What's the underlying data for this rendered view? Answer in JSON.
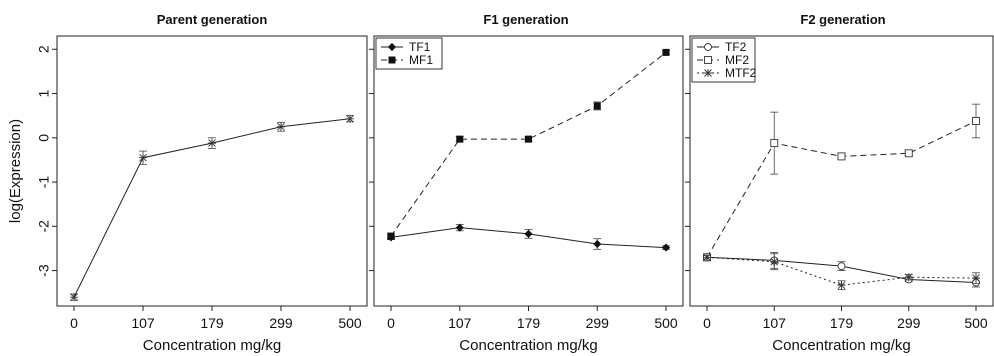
{
  "chart_data": [
    {
      "type": "line",
      "title": "Parent generation",
      "xlabel": "Concentration mg/kg",
      "ylabel": "log(Expression)",
      "categories": [
        "0",
        "107",
        "179",
        "299",
        "500"
      ],
      "ylim": [
        -3.8,
        2.3
      ],
      "yticks": [
        "-3",
        "-2",
        "-1",
        "0",
        "1",
        "2"
      ],
      "show_yticks": true,
      "legend": null,
      "series": [
        {
          "name": "",
          "marker": "star",
          "dash": "solid",
          "values": [
            -3.6,
            -0.45,
            -0.12,
            0.25,
            0.43
          ],
          "errors": [
            0.07,
            0.15,
            0.12,
            0.1,
            0.07
          ]
        }
      ]
    },
    {
      "type": "line",
      "title": "F1 generation",
      "xlabel": "Concentration mg/kg",
      "ylabel": "",
      "categories": [
        "0",
        "107",
        "179",
        "299",
        "500"
      ],
      "ylim": [
        -3.8,
        2.3
      ],
      "yticks": [
        "-3",
        "-2",
        "-1",
        "0",
        "1",
        "2"
      ],
      "show_yticks": false,
      "legend": "top-left",
      "series": [
        {
          "name": "TF1",
          "marker": "diamond",
          "dash": "solid",
          "values": [
            -2.25,
            -2.03,
            -2.17,
            -2.4,
            -2.48
          ],
          "errors": [
            0.05,
            0.07,
            0.1,
            0.12,
            0.04
          ]
        },
        {
          "name": "MF1",
          "marker": "square-filled",
          "dash": "dashed",
          "values": [
            -2.22,
            -0.03,
            -0.03,
            0.72,
            1.93
          ],
          "errors": [
            0.05,
            0.06,
            0.05,
            0.09,
            0.04
          ]
        }
      ]
    },
    {
      "type": "line",
      "title": "F2 generation",
      "xlabel": "Concentration mg/kg",
      "ylabel": "",
      "categories": [
        "0",
        "107",
        "179",
        "299",
        "500"
      ],
      "ylim": [
        -3.8,
        2.3
      ],
      "yticks": [
        "-3",
        "-2",
        "-1",
        "0",
        "1",
        "2"
      ],
      "show_yticks": false,
      "legend": "top-left",
      "series": [
        {
          "name": "TF2",
          "marker": "circle-open",
          "dash": "solid",
          "values": [
            -2.7,
            -2.77,
            -2.9,
            -3.2,
            -3.27
          ],
          "errors": [
            0.04,
            0.18,
            0.1,
            0.05,
            0.1
          ]
        },
        {
          "name": "MF2",
          "marker": "square-open",
          "dash": "dashed",
          "values": [
            -2.7,
            -0.12,
            -0.42,
            -0.35,
            0.38
          ],
          "errors": [
            0.04,
            0.7,
            0.07,
            0.05,
            0.38
          ]
        },
        {
          "name": "MTF2",
          "marker": "star",
          "dash": "dotted",
          "values": [
            -2.7,
            -2.8,
            -3.33,
            -3.15,
            -3.17
          ],
          "errors": [
            0.04,
            0.18,
            0.1,
            0.06,
            0.12
          ]
        }
      ]
    }
  ]
}
